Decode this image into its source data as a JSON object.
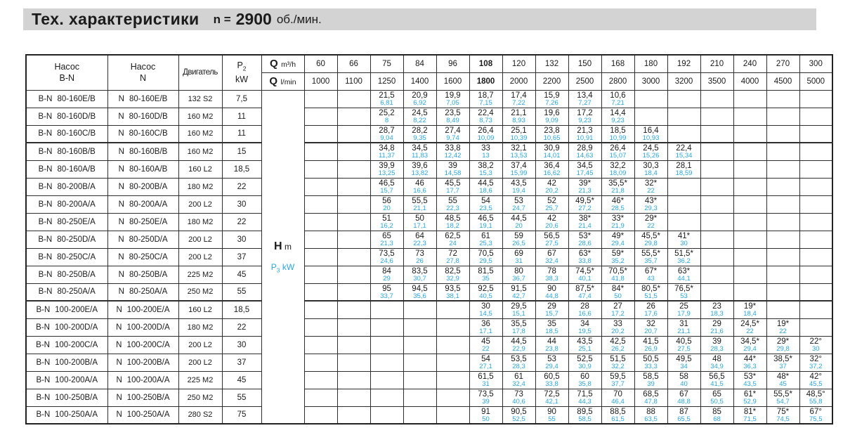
{
  "title": {
    "main": "Тех. характеристики",
    "n_label": "n =",
    "n_value": "2900",
    "units": "об./мин."
  },
  "colors": {
    "accent": "#2aa5dc",
    "title_bg": "#d3d3d3",
    "border": "#2e2e2e"
  },
  "table": {
    "header": {
      "pump_bn_line1": "Насос",
      "pump_bn_line2": "B-N",
      "pump_n_line1": "Насос",
      "pump_n_line2": "N",
      "motor": "Двигатель",
      "p2_base": "P",
      "p2_sub": "2",
      "p2_unit": "kW",
      "q_row1_symbol": "Q",
      "q_row1_unit": "m³/h",
      "q_row2_symbol": "Q",
      "q_row2_unit": "l/min",
      "flow_m3h": [
        "60",
        "66",
        "75",
        "84",
        "96",
        "108",
        "120",
        "132",
        "150",
        "168",
        "180",
        "192",
        "210",
        "240",
        "270",
        "300"
      ],
      "flow_lmin": [
        "1000",
        "1100",
        "1250",
        "1400",
        "1600",
        "1800",
        "2000",
        "2200",
        "2500",
        "2800",
        "3000",
        "3200",
        "3500",
        "4000",
        "4500",
        "5000"
      ],
      "bold_col": 5
    },
    "axis_labels": {
      "h_base": "H",
      "h_unit": "m",
      "p3_base": "P",
      "p3_sub": "3",
      "p3_unit": "kW"
    },
    "group_breaks_after": [
      2,
      11
    ],
    "rows": [
      {
        "bn_prefix": "B-N",
        "bn_model": "80-160E/B",
        "n_prefix": "N",
        "n_model": "80-160E/B",
        "motor": "132 S2",
        "p2": "7,5",
        "cells": [
          null,
          null,
          [
            "21,5",
            "6,81"
          ],
          [
            "20,9",
            "6,92"
          ],
          [
            "19,9",
            "7,05"
          ],
          [
            "18,7",
            "7,15"
          ],
          [
            "17,4",
            "7,22"
          ],
          [
            "15,9",
            "7,26"
          ],
          [
            "13,4",
            "7,27"
          ],
          [
            "10,6",
            "7,21"
          ],
          null,
          null,
          null,
          null,
          null,
          null
        ]
      },
      {
        "bn_prefix": "B-N",
        "bn_model": "80-160D/B",
        "n_prefix": "N",
        "n_model": "80-160D/B",
        "motor": "160 M2",
        "p2": "11",
        "cells": [
          null,
          null,
          [
            "25,2",
            "8"
          ],
          [
            "24,5",
            "8,22"
          ],
          [
            "23,5",
            "8,49"
          ],
          [
            "22,4",
            "8,73"
          ],
          [
            "21,1",
            "8,93"
          ],
          [
            "19,6",
            "9,09"
          ],
          [
            "17,2",
            "9,23"
          ],
          [
            "14,4",
            "9,23"
          ],
          null,
          null,
          null,
          null,
          null,
          null
        ]
      },
      {
        "bn_prefix": "B-N",
        "bn_model": "80-160C/B",
        "n_prefix": "N",
        "n_model": "80-160C/B",
        "motor": "160 M2",
        "p2": "11",
        "cells": [
          null,
          null,
          [
            "28,7",
            "9,04"
          ],
          [
            "28,2",
            "9,35"
          ],
          [
            "27,4",
            "9,74"
          ],
          [
            "26,4",
            "10,09"
          ],
          [
            "25,1",
            "10,39"
          ],
          [
            "23,8",
            "10,65"
          ],
          [
            "21,3",
            "10,91"
          ],
          [
            "18,5",
            "10,99"
          ],
          [
            "16,4",
            "10,93"
          ],
          null,
          null,
          null,
          null,
          null
        ]
      },
      {
        "bn_prefix": "B-N",
        "bn_model": "80-160B/B",
        "n_prefix": "N",
        "n_model": "80-160B/B",
        "motor": "160 M2",
        "p2": "15",
        "cells": [
          null,
          null,
          [
            "34,8",
            "11,37"
          ],
          [
            "34,5",
            "11,83"
          ],
          [
            "33,8",
            "12,42"
          ],
          [
            "33",
            "13"
          ],
          [
            "32,1",
            "13,53"
          ],
          [
            "30,9",
            "14,01"
          ],
          [
            "28,9",
            "14,63"
          ],
          [
            "26,4",
            "15,07"
          ],
          [
            "24,5",
            "15,26"
          ],
          [
            "22,4",
            "15,34"
          ],
          null,
          null,
          null,
          null
        ]
      },
      {
        "bn_prefix": "B-N",
        "bn_model": "80-160A/B",
        "n_prefix": "N",
        "n_model": "80-160A/B",
        "motor": "160 L2",
        "p2": "18,5",
        "cells": [
          null,
          null,
          [
            "39,9",
            "13,25"
          ],
          [
            "39,6",
            "13,82"
          ],
          [
            "39",
            "14,58"
          ],
          [
            "38,2",
            "15,3"
          ],
          [
            "37,4",
            "15,99"
          ],
          [
            "36,4",
            "16,62"
          ],
          [
            "34,5",
            "17,45"
          ],
          [
            "32,2",
            "18,09"
          ],
          [
            "30,3",
            "18,4"
          ],
          [
            "28,1",
            "18,59"
          ],
          null,
          null,
          null,
          null
        ]
      },
      {
        "bn_prefix": "B-N",
        "bn_model": "80-200B/A",
        "n_prefix": "N",
        "n_model": "80-200B/A",
        "motor": "180 M2",
        "p2": "22",
        "cells": [
          null,
          null,
          [
            "46,5",
            "15,7"
          ],
          [
            "46",
            "16,6"
          ],
          [
            "45,5",
            "17,7"
          ],
          [
            "44,5",
            "18,6"
          ],
          [
            "43,5",
            "19,4"
          ],
          [
            "42",
            "20,2"
          ],
          [
            "39*",
            "21,3"
          ],
          [
            "35,5*",
            "21,8"
          ],
          [
            "32*",
            "22"
          ],
          null,
          null,
          null,
          null,
          null
        ]
      },
      {
        "bn_prefix": "B-N",
        "bn_model": "80-200A/A",
        "n_prefix": "N",
        "n_model": "80-200A/A",
        "motor": "200 L2",
        "p2": "30",
        "cells": [
          null,
          null,
          [
            "56",
            "20"
          ],
          [
            "55,5",
            "21,1"
          ],
          [
            "55",
            "22,3"
          ],
          [
            "54",
            "23,5"
          ],
          [
            "53",
            "24,7"
          ],
          [
            "52",
            "25,7"
          ],
          [
            "49,5*",
            "27,2"
          ],
          [
            "46*",
            "28,5"
          ],
          [
            "43*",
            "29,3"
          ],
          null,
          null,
          null,
          null,
          null
        ]
      },
      {
        "bn_prefix": "B-N",
        "bn_model": "80-250E/A",
        "n_prefix": "N",
        "n_model": "80-250E/A",
        "motor": "180 M2",
        "p2": "22",
        "cells": [
          null,
          null,
          [
            "51",
            "16,2"
          ],
          [
            "50",
            "17,1"
          ],
          [
            "48,5",
            "18,2"
          ],
          [
            "46,5",
            "19,1"
          ],
          [
            "44,5",
            "20"
          ],
          [
            "42",
            "20,6"
          ],
          [
            "38*",
            "21,4"
          ],
          [
            "33*",
            "21,9"
          ],
          [
            "29*",
            "22"
          ],
          null,
          null,
          null,
          null,
          null
        ]
      },
      {
        "bn_prefix": "B-N",
        "bn_model": "80-250D/A",
        "n_prefix": "N",
        "n_model": "80-250D/A",
        "motor": "200 L2",
        "p2": "30",
        "cells": [
          null,
          null,
          [
            "65",
            "21,3"
          ],
          [
            "64",
            "22,3"
          ],
          [
            "62,5",
            "24"
          ],
          [
            "61",
            "25,3"
          ],
          [
            "59",
            "26,5"
          ],
          [
            "56,5",
            "27,5"
          ],
          [
            "53*",
            "28,6"
          ],
          [
            "49*",
            "29,4"
          ],
          [
            "45,5*",
            "29,8"
          ],
          [
            "41*",
            "30"
          ],
          null,
          null,
          null,
          null
        ]
      },
      {
        "bn_prefix": "B-N",
        "bn_model": "80-250C/A",
        "n_prefix": "N",
        "n_model": "80-250C/A",
        "motor": "200 L2",
        "p2": "37",
        "cells": [
          null,
          null,
          [
            "73,5",
            "24,6"
          ],
          [
            "73",
            "26"
          ],
          [
            "72",
            "27,8"
          ],
          [
            "70,5",
            "29,5"
          ],
          [
            "69",
            "31"
          ],
          [
            "67",
            "32,4"
          ],
          [
            "63*",
            "33,8"
          ],
          [
            "59*",
            "35,2"
          ],
          [
            "55,5*",
            "35,7"
          ],
          [
            "51,5*",
            "36,2"
          ],
          null,
          null,
          null,
          null
        ]
      },
      {
        "bn_prefix": "B-N",
        "bn_model": "80-250B/A",
        "n_prefix": "N",
        "n_model": "80-250B/A",
        "motor": "225 M2",
        "p2": "45",
        "cells": [
          null,
          null,
          [
            "84",
            "29"
          ],
          [
            "83,5",
            "30,7"
          ],
          [
            "82,5",
            "32,9"
          ],
          [
            "81,5",
            "35"
          ],
          [
            "80",
            "36,7"
          ],
          [
            "78",
            "38,3"
          ],
          [
            "74,5*",
            "40,1"
          ],
          [
            "70,5*",
            "41,8"
          ],
          [
            "67*",
            "43"
          ],
          [
            "63*",
            "44,1"
          ],
          null,
          null,
          null,
          null
        ]
      },
      {
        "bn_prefix": "B-N",
        "bn_model": "80-250A/A",
        "n_prefix": "N",
        "n_model": "80-250A/A",
        "motor": "250 M2",
        "p2": "55",
        "cells": [
          null,
          null,
          [
            "95",
            "33,7"
          ],
          [
            "94,5",
            "35,6"
          ],
          [
            "93,5",
            "38,1"
          ],
          [
            "92,5",
            "40,5"
          ],
          [
            "91,5",
            "42,7"
          ],
          [
            "90",
            "44,8"
          ],
          [
            "87,5*",
            "47,4"
          ],
          [
            "84*",
            "50"
          ],
          [
            "80,5*",
            "51,5"
          ],
          [
            "76,5*",
            "53"
          ],
          null,
          null,
          null,
          null
        ]
      },
      {
        "bn_prefix": "B-N",
        "bn_model": "100-200E/A",
        "n_prefix": "N",
        "n_model": "100-200E/A",
        "motor": "160 L2",
        "p2": "18,5",
        "cells": [
          null,
          null,
          null,
          null,
          null,
          [
            "30",
            "14,5"
          ],
          [
            "29,5",
            "15,1"
          ],
          [
            "29",
            "15,7"
          ],
          [
            "28",
            "16,6"
          ],
          [
            "27",
            "17,2"
          ],
          [
            "26",
            "17,6"
          ],
          [
            "25",
            "17,9"
          ],
          [
            "23",
            "18,3"
          ],
          [
            "19*",
            "18,4"
          ],
          null,
          null
        ]
      },
      {
        "bn_prefix": "B-N",
        "bn_model": "100-200D/A",
        "n_prefix": "N",
        "n_model": "100-200D/A",
        "motor": "180 M2",
        "p2": "22",
        "cells": [
          null,
          null,
          null,
          null,
          null,
          [
            "36",
            "17,1"
          ],
          [
            "35,5",
            "17,8"
          ],
          [
            "35",
            "18,5"
          ],
          [
            "34",
            "19,5"
          ],
          [
            "33",
            "20,2"
          ],
          [
            "32",
            "20,7"
          ],
          [
            "31",
            "21,1"
          ],
          [
            "29",
            "21,6"
          ],
          [
            "24,5*",
            "22"
          ],
          [
            "19*",
            "22"
          ],
          null
        ]
      },
      {
        "bn_prefix": "B-N",
        "bn_model": "100-200C/A",
        "n_prefix": "N",
        "n_model": "100-200C/A",
        "motor": "200 L2",
        "p2": "30",
        "cells": [
          null,
          null,
          null,
          null,
          null,
          [
            "45",
            "22"
          ],
          [
            "44,5",
            "22,9"
          ],
          [
            "44",
            "23,8"
          ],
          [
            "43,5",
            "25,1"
          ],
          [
            "42,5",
            "26,2"
          ],
          [
            "41,5",
            "26,9"
          ],
          [
            "40,5",
            "27,5"
          ],
          [
            "39",
            "28,3"
          ],
          [
            "34,5*",
            "29,4"
          ],
          [
            "29*",
            "29,8"
          ],
          [
            "22°",
            "30"
          ]
        ]
      },
      {
        "bn_prefix": "B-N",
        "bn_model": "100-200B/A",
        "n_prefix": "N",
        "n_model": "100-200B/A",
        "motor": "200 L2",
        "p2": "37",
        "cells": [
          null,
          null,
          null,
          null,
          null,
          [
            "54",
            "27,1"
          ],
          [
            "53,5",
            "28,3"
          ],
          [
            "53",
            "29,4"
          ],
          [
            "52,5",
            "30,9"
          ],
          [
            "51,5",
            "32,2"
          ],
          [
            "50,5",
            "33,3"
          ],
          [
            "49,5",
            "34"
          ],
          [
            "48",
            "34,9"
          ],
          [
            "44*",
            "36,3"
          ],
          [
            "38,5*",
            "37"
          ],
          [
            "32°",
            "37,2"
          ]
        ]
      },
      {
        "bn_prefix": "B-N",
        "bn_model": "100-200A/A",
        "n_prefix": "N",
        "n_model": "100-200A/A",
        "motor": "225 M2",
        "p2": "45",
        "cells": [
          null,
          null,
          null,
          null,
          null,
          [
            "61,5",
            "31"
          ],
          [
            "61",
            "32,4"
          ],
          [
            "60,5",
            "33,8"
          ],
          [
            "60",
            "35,8"
          ],
          [
            "59,5",
            "37,7"
          ],
          [
            "58,5",
            "39"
          ],
          [
            "58",
            "40"
          ],
          [
            "56,5",
            "41,5"
          ],
          [
            "53*",
            "43,5"
          ],
          [
            "48*",
            "45"
          ],
          [
            "42°",
            "45,5"
          ]
        ]
      },
      {
        "bn_prefix": "B-N",
        "bn_model": "100-250B/A",
        "n_prefix": "N",
        "n_model": "100-250B/A",
        "motor": "250 M2",
        "p2": "55",
        "cells": [
          null,
          null,
          null,
          null,
          null,
          [
            "73,5",
            "39"
          ],
          [
            "73",
            "40,6"
          ],
          [
            "72,5",
            "42,1"
          ],
          [
            "71,5",
            "44,3"
          ],
          [
            "70",
            "46,4"
          ],
          [
            "68,5",
            "47,8"
          ],
          [
            "67",
            "48,8"
          ],
          [
            "65",
            "50,5"
          ],
          [
            "61*",
            "52,9"
          ],
          [
            "55,5*",
            "54,7"
          ],
          [
            "48,5°",
            "55,8"
          ]
        ]
      },
      {
        "bn_prefix": "B-N",
        "bn_model": "100-250A/A",
        "n_prefix": "N",
        "n_model": "100-250A/A",
        "motor": "280 S2",
        "p2": "75",
        "cells": [
          null,
          null,
          null,
          null,
          null,
          [
            "91",
            "50"
          ],
          [
            "90,5",
            "52,5"
          ],
          [
            "90",
            "55"
          ],
          [
            "89,5",
            "58,5"
          ],
          [
            "88,5",
            "61,5"
          ],
          [
            "88",
            "63,5"
          ],
          [
            "87",
            "65,5"
          ],
          [
            "85",
            "68"
          ],
          [
            "81*",
            "71,5"
          ],
          [
            "75*",
            "74,5"
          ],
          [
            "67°",
            "75,5"
          ]
        ]
      }
    ]
  }
}
